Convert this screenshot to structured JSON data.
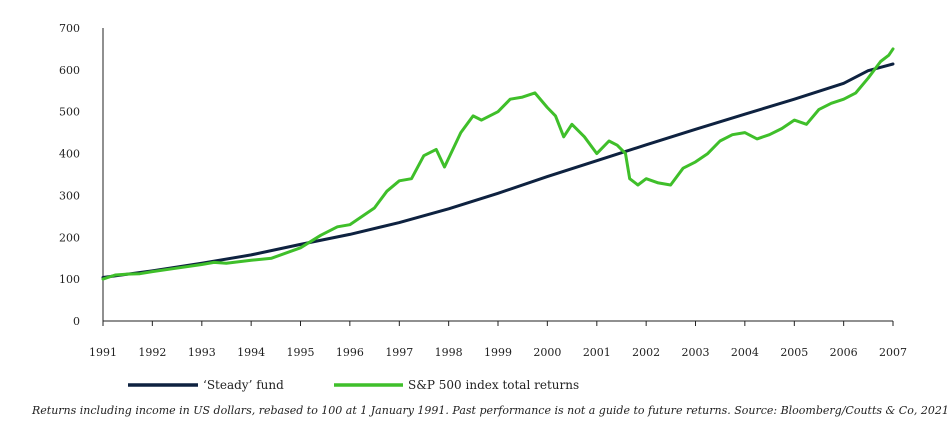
{
  "chart_data": {
    "type": "line",
    "title": "",
    "xlabel": "",
    "ylabel": "",
    "ylim": [
      0,
      700
    ],
    "xlim": [
      "1991-01-01",
      "2007-01-01"
    ],
    "y_ticks": [
      0,
      100,
      200,
      300,
      400,
      500,
      600,
      700
    ],
    "x_ticks": [
      "1991",
      "1992",
      "1993",
      "1994",
      "1995",
      "1996",
      "1997",
      "1998",
      "1999",
      "2000",
      "2001",
      "2002",
      "2003",
      "2004",
      "2005",
      "2006",
      "2007"
    ],
    "grid": false,
    "legend": "bottom",
    "series": [
      {
        "name": "‘Steady’ fund",
        "color": "#0e2240",
        "points": [
          [
            "1991-01-01",
            104
          ],
          [
            "1992-01-01",
            120
          ],
          [
            "1993-01-01",
            138
          ],
          [
            "1994-01-01",
            158
          ],
          [
            "1995-01-01",
            183
          ],
          [
            "1996-01-01",
            207
          ],
          [
            "1997-01-01",
            235
          ],
          [
            "1998-01-01",
            268
          ],
          [
            "1999-01-01",
            305
          ],
          [
            "2000-01-01",
            345
          ],
          [
            "2001-01-01",
            383
          ],
          [
            "2002-01-01",
            421
          ],
          [
            "2003-01-01",
            458
          ],
          [
            "2004-01-01",
            494
          ],
          [
            "2005-01-01",
            530
          ],
          [
            "2006-01-01",
            568
          ],
          [
            "2006-07-01",
            598
          ],
          [
            "2007-01-01",
            614
          ]
        ]
      },
      {
        "name": "S&P 500 index total returns",
        "color": "#3fbf2a",
        "points": [
          [
            "1991-01-01",
            100
          ],
          [
            "1991-04-01",
            110
          ],
          [
            "1991-07-01",
            112
          ],
          [
            "1991-10-01",
            113
          ],
          [
            "1992-01-01",
            118
          ],
          [
            "1992-06-01",
            125
          ],
          [
            "1993-01-01",
            135
          ],
          [
            "1993-04-01",
            140
          ],
          [
            "1993-07-01",
            138
          ],
          [
            "1994-01-01",
            145
          ],
          [
            "1994-06-01",
            150
          ],
          [
            "1995-01-01",
            175
          ],
          [
            "1995-06-01",
            205
          ],
          [
            "1995-10-01",
            225
          ],
          [
            "1996-01-01",
            230
          ],
          [
            "1996-04-01",
            250
          ],
          [
            "1996-07-01",
            270
          ],
          [
            "1996-10-01",
            310
          ],
          [
            "1997-01-01",
            335
          ],
          [
            "1997-04-01",
            340
          ],
          [
            "1997-07-01",
            395
          ],
          [
            "1997-10-01",
            410
          ],
          [
            "1997-12-01",
            368
          ],
          [
            "1998-04-01",
            450
          ],
          [
            "1998-07-01",
            490
          ],
          [
            "1998-09-01",
            480
          ],
          [
            "1999-01-01",
            500
          ],
          [
            "1999-04-01",
            530
          ],
          [
            "1999-07-01",
            535
          ],
          [
            "1999-10-01",
            545
          ],
          [
            "2000-01-01",
            510
          ],
          [
            "2000-03-01",
            490
          ],
          [
            "2000-05-01",
            440
          ],
          [
            "2000-07-01",
            470
          ],
          [
            "2000-10-01",
            440
          ],
          [
            "2001-01-01",
            400
          ],
          [
            "2001-04-01",
            430
          ],
          [
            "2001-06-01",
            420
          ],
          [
            "2001-08-01",
            400
          ],
          [
            "2001-09-01",
            340
          ],
          [
            "2001-11-01",
            325
          ],
          [
            "2002-01-01",
            340
          ],
          [
            "2002-04-01",
            330
          ],
          [
            "2002-07-01",
            325
          ],
          [
            "2002-10-01",
            365
          ],
          [
            "2003-01-01",
            380
          ],
          [
            "2003-04-01",
            400
          ],
          [
            "2003-07-01",
            430
          ],
          [
            "2003-10-01",
            445
          ],
          [
            "2004-01-01",
            450
          ],
          [
            "2004-04-01",
            435
          ],
          [
            "2004-07-01",
            445
          ],
          [
            "2004-10-01",
            460
          ],
          [
            "2005-01-01",
            480
          ],
          [
            "2005-04-01",
            470
          ],
          [
            "2005-07-01",
            505
          ],
          [
            "2005-10-01",
            520
          ],
          [
            "2006-01-01",
            530
          ],
          [
            "2006-04-01",
            545
          ],
          [
            "2006-07-01",
            580
          ],
          [
            "2006-10-01",
            620
          ],
          [
            "2006-12-01",
            635
          ],
          [
            "2007-01-01",
            650
          ]
        ]
      }
    ],
    "caption": "Returns including income in US dollars, rebased to 100 at 1 January 1991. Past performance is not a guide to future returns. Source: Bloomberg/Coutts & Co, 2021"
  }
}
